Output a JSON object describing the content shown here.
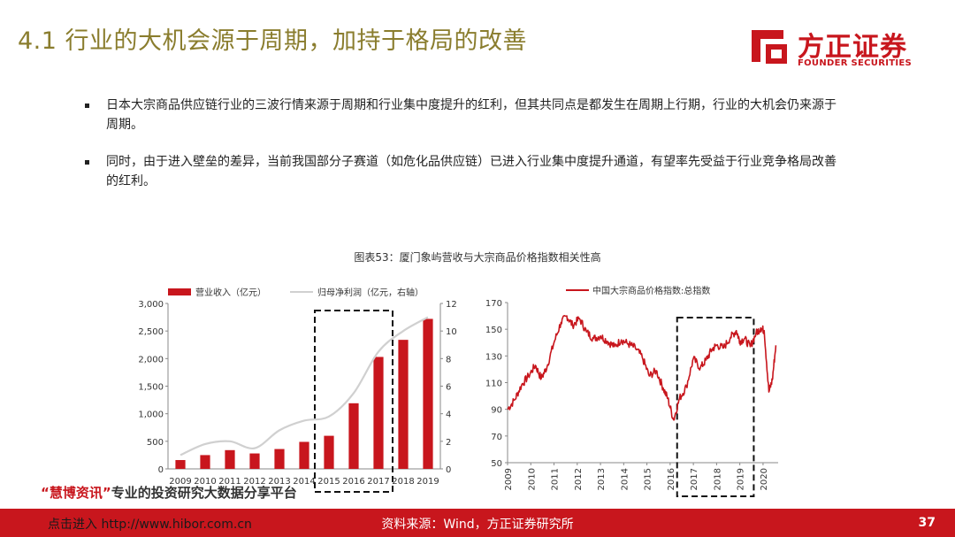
{
  "header": {
    "title": "4.1 行业的大机会源于周期，加持于格局的改善",
    "logo_cn": "方正证券",
    "logo_en": "FOUNDER SECURITIES"
  },
  "bullets": [
    "日本大宗商品供应链行业的三波行情来源于周期和行业集中度提升的红利，但其共同点是都发生在周期上行期，行业的大机会仍来源于周期。",
    "同时，由于进入壁垒的差异，当前我国部分子赛道（如危化品供应链）已进入行业集中度提升通道，有望率先受益于行业竞争格局改善的红利。"
  ],
  "figure_title": "图表53：厦门象屿营收与大宗商品价格指数相关性高",
  "chart_data": [
    {
      "type": "bar",
      "categories": [
        "2009",
        "2010",
        "2011",
        "2012",
        "2013",
        "2014",
        "2015",
        "2016",
        "2017",
        "2018",
        "2019"
      ],
      "series": [
        {
          "name": "营业收入（亿元）",
          "type": "bar",
          "axis": "left",
          "color": "#c8161d",
          "values": [
            160,
            250,
            340,
            280,
            360,
            490,
            600,
            1190,
            2030,
            2340,
            2720
          ]
        },
        {
          "name": "归母净利润（亿元，右轴）",
          "type": "line",
          "axis": "right",
          "color": "#d0d0d0",
          "values": [
            1.0,
            1.8,
            2.0,
            1.5,
            2.8,
            3.5,
            3.8,
            5.5,
            8.5,
            10.0,
            11.0
          ]
        }
      ],
      "ylim": [
        0,
        3000
      ],
      "yticks": [
        "0",
        "500",
        "1,000",
        "1,500",
        "2,000",
        "2,500",
        "3,000"
      ],
      "y2lim": [
        0,
        12
      ],
      "y2ticks": [
        "0",
        "2",
        "4",
        "6",
        "8",
        "10",
        "12"
      ],
      "highlight_range": [
        "2015",
        "2017"
      ],
      "legend": "top"
    },
    {
      "type": "line",
      "series": [
        {
          "name": "中国大宗商品价格指数:总指数",
          "color": "#c8161d"
        }
      ],
      "anchors": [
        [
          2009.0,
          90
        ],
        [
          2009.3,
          97
        ],
        [
          2009.6,
          108
        ],
        [
          2009.9,
          115
        ],
        [
          2010.2,
          123
        ],
        [
          2010.45,
          113
        ],
        [
          2010.7,
          122
        ],
        [
          2011.0,
          140
        ],
        [
          2011.3,
          155
        ],
        [
          2011.55,
          160
        ],
        [
          2011.8,
          153
        ],
        [
          2012.1,
          158
        ],
        [
          2012.4,
          148
        ],
        [
          2012.7,
          143
        ],
        [
          2013.0,
          145
        ],
        [
          2013.3,
          141
        ],
        [
          2013.6,
          137
        ],
        [
          2013.9,
          142
        ],
        [
          2014.2,
          139
        ],
        [
          2014.5,
          136
        ],
        [
          2014.8,
          129
        ],
        [
          2015.1,
          115
        ],
        [
          2015.4,
          119
        ],
        [
          2015.7,
          106
        ],
        [
          2015.9,
          98
        ],
        [
          2016.15,
          82
        ],
        [
          2016.4,
          98
        ],
        [
          2016.7,
          107
        ],
        [
          2017.0,
          128
        ],
        [
          2017.3,
          121
        ],
        [
          2017.55,
          127
        ],
        [
          2017.8,
          135
        ],
        [
          2018.0,
          138
        ],
        [
          2018.3,
          136
        ],
        [
          2018.6,
          144
        ],
        [
          2018.85,
          149
        ],
        [
          2019.0,
          141
        ],
        [
          2019.2,
          143
        ],
        [
          2019.45,
          137
        ],
        [
          2019.7,
          147
        ],
        [
          2019.9,
          151
        ],
        [
          2020.05,
          149
        ],
        [
          2020.25,
          103
        ],
        [
          2020.4,
          112
        ],
        [
          2020.55,
          138
        ]
      ],
      "x_ticks": [
        "2009",
        "2010",
        "2011",
        "2012",
        "2013",
        "2014",
        "2015",
        "2016",
        "2017",
        "2018",
        "2019",
        "2020"
      ],
      "ylim": [
        50,
        170
      ],
      "yticks": [
        "50",
        "70",
        "90",
        "110",
        "130",
        "150",
        "170"
      ],
      "highlight_range": [
        "2016.3",
        "2019.6"
      ],
      "legend": "top"
    }
  ],
  "watermark": {
    "quote_open": "“",
    "name": "慧博资讯",
    "quote_close": "”",
    "text": "专业的投资研究大数据分享平台"
  },
  "footer": {
    "link": "点击进入 http://www.hibor.com.cn",
    "source": "资料来源：Wind，方正证券研究所",
    "page": "37"
  }
}
